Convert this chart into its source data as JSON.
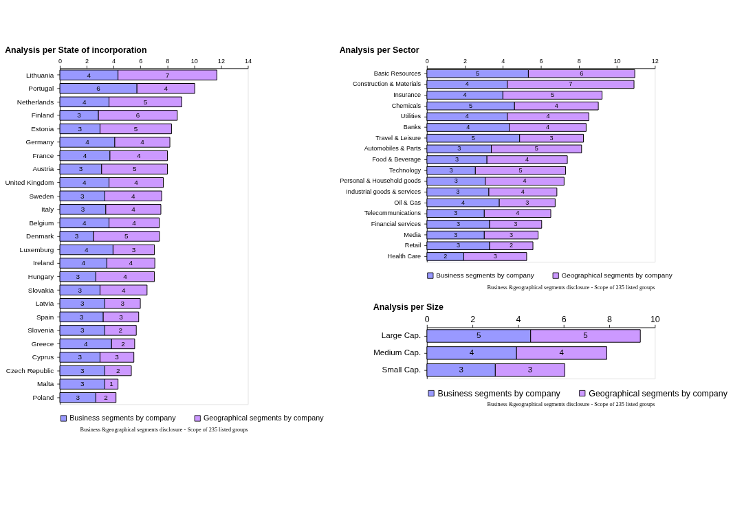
{
  "chart_data": [
    {
      "type": "bar",
      "orientation": "horizontal",
      "stacked": true,
      "title": "Analysis per State of incorporation",
      "categories": [
        "Lithuania",
        "Portugal",
        "Netherlands",
        "Finland",
        "Estonia",
        "Germany",
        "France",
        "Austria",
        "United Kingdom",
        "Sweden",
        "Italy",
        "Belgium",
        "Denmark",
        "Luxemburg",
        "Ireland",
        "Hungary",
        "Slovakia",
        "Latvia",
        "Spain",
        "Slovenia",
        "Greece",
        "Cyprus",
        "Czech Republic",
        "Malta",
        "Poland"
      ],
      "series": [
        {
          "name": "Business segments by company",
          "color": "#9999ff",
          "values": [
            4.33,
            5.74,
            3.66,
            2.87,
            2.99,
            4.09,
            3.73,
            3.11,
            3.66,
            3.35,
            3.42,
            3.66,
            2.5,
            3.96,
            3.5,
            2.68,
            2.99,
            3.35,
            3.23,
            3.35,
            3.85,
            2.99,
            3.35,
            3.35,
            2.68
          ],
          "value_labels": [
            "4",
            "6",
            "4",
            "3",
            "3",
            "4",
            "4",
            "3",
            "4",
            "3",
            "3",
            "4",
            "3",
            "4",
            "4",
            "3",
            "3",
            "3",
            "3",
            "3",
            "4",
            "3",
            "3",
            "3",
            "3"
          ]
        },
        {
          "name": "Geographical segments by company",
          "color": "#cc99ff",
          "values": [
            7.36,
            4.3,
            5.41,
            5.87,
            5.32,
            4.1,
            4.28,
            4.9,
            4.04,
            4.23,
            4.1,
            3.74,
            4.91,
            3.08,
            3.57,
            4.36,
            3.5,
            2.64,
            2.64,
            2.34,
            1.72,
            2.52,
            1.97,
            0.98,
            1.5
          ],
          "value_labels": [
            "7",
            "4",
            "5",
            "6",
            "5",
            "4",
            "4",
            "5",
            "4",
            "4",
            "4",
            "4",
            "5",
            "3",
            "4",
            "4",
            "4",
            "3",
            "3",
            "2",
            "2",
            "3",
            "2",
            "1",
            "2"
          ]
        }
      ],
      "xlim": [
        0,
        14
      ],
      "xticks": [
        0,
        2,
        4,
        6,
        8,
        10,
        12,
        14
      ],
      "legend": "bottom",
      "annotations": [
        "Business &geographical segments disclosure - Scope of 235 listed groups"
      ]
    },
    {
      "type": "bar",
      "orientation": "horizontal",
      "stacked": true,
      "title": "Analysis per Sector",
      "categories": [
        "Basic Resources",
        "Construction & Materials",
        "Insurance",
        "Chemicals",
        "Utilities",
        "Banks",
        "Travel & Leisure",
        "Automobiles & Parts",
        "Food & Beverage",
        "Technology",
        "Personal & Household goods",
        "Industrial goods & services",
        "Oil & Gas",
        "Telecommunications",
        "Financial services",
        "Media",
        "Retail",
        "Health Care"
      ],
      "series": [
        {
          "name": "Business segments by company",
          "color": "#9999ff",
          "values": [
            5.34,
            4.23,
            4.0,
            4.61,
            4.23,
            4.33,
            4.88,
            3.39,
            3.16,
            2.55,
            3.07,
            3.26,
            3.81,
            3.02,
            3.3,
            3.02,
            3.3,
            1.94
          ],
          "value_labels": [
            "5",
            "4",
            "4",
            "5",
            "4",
            "4",
            "5",
            "3",
            "3",
            "3",
            "3",
            "3",
            "4",
            "3",
            "3",
            "3",
            "3",
            "2"
          ]
        },
        {
          "name": "Geographical segments by company",
          "color": "#cc99ff",
          "values": [
            5.6,
            6.67,
            5.22,
            4.41,
            4.29,
            4.05,
            3.36,
            4.75,
            4.23,
            4.75,
            4.15,
            3.58,
            2.94,
            3.5,
            2.74,
            2.83,
            2.28,
            3.31
          ],
          "value_labels": [
            "6",
            "7",
            "5",
            "4",
            "4",
            "4",
            "3",
            "5",
            "4",
            "5",
            "4",
            "4",
            "3",
            "4",
            "3",
            "3",
            "2",
            "3"
          ]
        }
      ],
      "xlim": [
        0,
        12
      ],
      "xticks": [
        0,
        2,
        4,
        6,
        8,
        10,
        12
      ],
      "legend": "bottom",
      "annotations": [
        "Business &geographical segments disclosure - Scope of 235 listed groups"
      ]
    },
    {
      "type": "bar",
      "orientation": "horizontal",
      "stacked": true,
      "title": "Analysis per Size",
      "categories": [
        "Large Cap.",
        "Medium Cap.",
        "Small Cap."
      ],
      "series": [
        {
          "name": "Business segments by company",
          "color": "#9999ff",
          "values": [
            4.55,
            3.93,
            3.0
          ],
          "value_labels": [
            "5",
            "4",
            "3"
          ]
        },
        {
          "name": "Geographical segments by company",
          "color": "#cc99ff",
          "values": [
            4.81,
            3.96,
            3.05
          ],
          "value_labels": [
            "5",
            "4",
            "3"
          ]
        }
      ],
      "xlim": [
        0,
        10
      ],
      "xticks": [
        0,
        2,
        4,
        6,
        8,
        10
      ],
      "legend": "bottom",
      "annotations": [
        "Business &geographical segments disclosure - Scope of 235 listed groups"
      ]
    }
  ]
}
